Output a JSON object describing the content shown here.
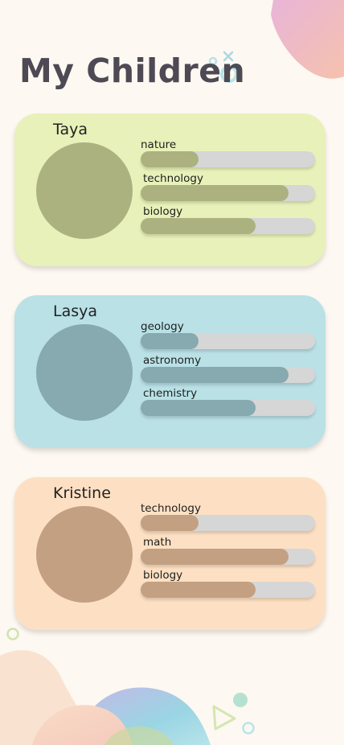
{
  "page": {
    "title": "My Children"
  },
  "children": [
    {
      "name": "Taya",
      "card_color": "#e8f1b9",
      "accent_color": "#acb27f",
      "interests": [
        {
          "label": "nature",
          "level": 0.33
        },
        {
          "label": "technology",
          "level": 0.85
        },
        {
          "label": "biology",
          "level": 0.66
        }
      ]
    },
    {
      "name": "Lasya",
      "card_color": "#b9e1e6",
      "accent_color": "#87a9b0",
      "interests": [
        {
          "label": "geology",
          "level": 0.33
        },
        {
          "label": "astronomy",
          "level": 0.85
        },
        {
          "label": "chemistry",
          "level": 0.66
        }
      ]
    },
    {
      "name": "Kristine",
      "card_color": "#fde0c3",
      "accent_color": "#c4a082",
      "interests": [
        {
          "label": "technology",
          "level": 0.33
        },
        {
          "label": "math",
          "level": 0.85
        },
        {
          "label": "biology",
          "level": 0.66
        }
      ]
    }
  ]
}
